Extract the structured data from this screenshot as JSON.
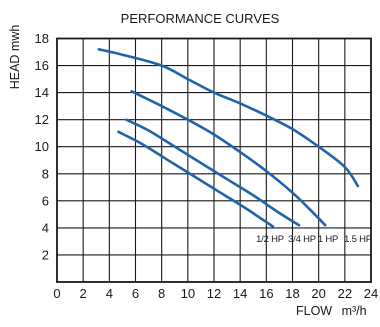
{
  "chart_data": {
    "type": "line",
    "title": "PERFORMANCE CURVES",
    "xlabel": "FLOW",
    "xunit": "m³/h",
    "ylabel": "HEAD mwh",
    "xlim": [
      0,
      24
    ],
    "ylim": [
      0,
      18
    ],
    "xticks": [
      0,
      2,
      4,
      6,
      8,
      10,
      12,
      14,
      16,
      18,
      20,
      22,
      24
    ],
    "yticks": [
      2,
      4,
      6,
      8,
      10,
      12,
      14,
      16,
      18
    ],
    "grid": true,
    "line_color": "#1f64a8",
    "series": [
      {
        "name": "1/2 HP",
        "x": [
          4.7,
          6.5,
          8.5,
          10.5,
          12.5,
          14.5,
          16.5
        ],
        "y": [
          11.1,
          10.2,
          9.0,
          7.8,
          6.6,
          5.4,
          4.1
        ]
      },
      {
        "name": "3/4 HP",
        "x": [
          5.3,
          7.0,
          9.0,
          11.0,
          13.0,
          15.0,
          17.0,
          18.5
        ],
        "y": [
          12.0,
          11.2,
          10.0,
          8.8,
          7.6,
          6.4,
          5.1,
          4.2
        ]
      },
      {
        "name": "1 HP",
        "x": [
          5.7,
          8.0,
          10.0,
          12.0,
          14.0,
          16.0,
          18.0,
          19.5,
          20.5
        ],
        "y": [
          14.1,
          13.0,
          12.0,
          10.9,
          9.6,
          8.2,
          6.6,
          5.2,
          4.2
        ]
      },
      {
        "name": "1.5 HP",
        "x": [
          3.2,
          5.0,
          8.0,
          10.0,
          12.0,
          14.0,
          16.0,
          18.0,
          20.0,
          22.0,
          23.0
        ],
        "y": [
          17.2,
          16.8,
          16.0,
          15.0,
          14.0,
          13.2,
          12.3,
          11.3,
          10.0,
          8.5,
          7.1
        ]
      }
    ]
  }
}
